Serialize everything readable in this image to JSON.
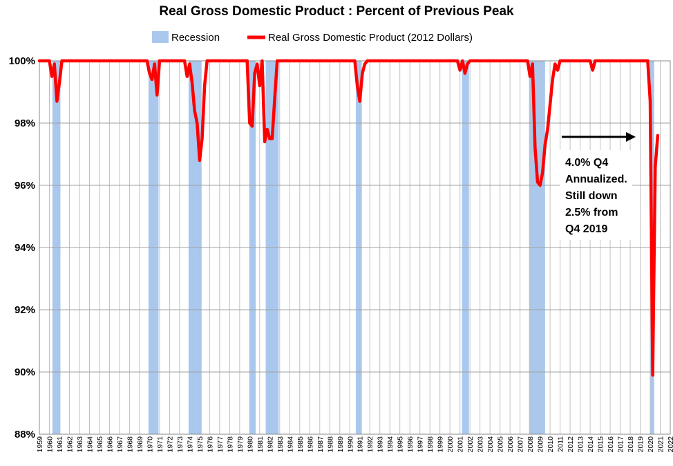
{
  "colors": {
    "recession": "#aac8ee",
    "line": "#ff0000",
    "grid": "#c0c0c0",
    "arrow": "#000000"
  },
  "chart_data": {
    "type": "line",
    "title": "Real Gross Domestic Product : Percent of Previous Peak",
    "xlabel": "",
    "ylabel": "",
    "legend": {
      "placement": "top",
      "entries": [
        "Recession",
        "Real Gross Domestic Product (2012 Dollars)"
      ]
    },
    "ylim": [
      88,
      100
    ],
    "xlim": [
      1959,
      2022
    ],
    "grid": true,
    "y_ticks": [
      {
        "value": 100,
        "label": "100%"
      },
      {
        "value": 98,
        "label": "98%"
      },
      {
        "value": 96,
        "label": "96%"
      },
      {
        "value": 94,
        "label": "94%"
      },
      {
        "value": 92,
        "label": "92%"
      },
      {
        "value": 90,
        "label": "90%"
      },
      {
        "value": 88,
        "label": "88%"
      }
    ],
    "x_ticks": [
      "1959",
      "1960",
      "1961",
      "1962",
      "1963",
      "1964",
      "1965",
      "1966",
      "1967",
      "1968",
      "1969",
      "1970",
      "1971",
      "1972",
      "1973",
      "1974",
      "1975",
      "1976",
      "1977",
      "1978",
      "1979",
      "1980",
      "1981",
      "1982",
      "1983",
      "1984",
      "1985",
      "1986",
      "1987",
      "1988",
      "1989",
      "1990",
      "1991",
      "1992",
      "1993",
      "1994",
      "1995",
      "1996",
      "1997",
      "1998",
      "1999",
      "2000",
      "2001",
      "2002",
      "2003",
      "2004",
      "2005",
      "2006",
      "2007",
      "2008",
      "2009",
      "2010",
      "2011",
      "2012",
      "2013",
      "2014",
      "2015",
      "2016",
      "2017",
      "2018",
      "2019",
      "2020",
      "2021",
      "2022"
    ],
    "recessions": [
      {
        "start": 1960.3,
        "end": 1961.1
      },
      {
        "start": 1969.9,
        "end": 1970.9
      },
      {
        "start": 1973.9,
        "end": 1975.2
      },
      {
        "start": 1980.0,
        "end": 1980.6
      },
      {
        "start": 1981.6,
        "end": 1982.9
      },
      {
        "start": 1990.6,
        "end": 1991.2
      },
      {
        "start": 2001.2,
        "end": 2001.9
      },
      {
        "start": 2007.9,
        "end": 2009.5
      },
      {
        "start": 2020.0,
        "end": 2020.4
      }
    ],
    "series": [
      {
        "name": "Real Gross Domestic Product (2012 Dollars)",
        "x": [
          1959.0,
          1960.0,
          1960.25,
          1960.5,
          1960.75,
          1961.0,
          1961.25,
          1961.5,
          1969.75,
          1970.0,
          1970.25,
          1970.5,
          1970.75,
          1971.0,
          1971.25,
          1973.5,
          1973.75,
          1974.0,
          1974.25,
          1974.5,
          1974.75,
          1975.0,
          1975.25,
          1975.5,
          1975.75,
          1976.0,
          1979.75,
          1980.0,
          1980.25,
          1980.5,
          1980.75,
          1981.0,
          1981.25,
          1981.5,
          1981.75,
          1982.0,
          1982.25,
          1982.5,
          1982.75,
          1983.0,
          1983.25,
          1983.5,
          1990.5,
          1990.75,
          1991.0,
          1991.25,
          1991.5,
          1991.75,
          2000.75,
          2001.0,
          2001.25,
          2001.5,
          2001.75,
          2002.0,
          2007.75,
          2008.0,
          2008.25,
          2008.5,
          2008.75,
          2009.0,
          2009.25,
          2009.5,
          2009.75,
          2010.0,
          2010.25,
          2010.5,
          2010.75,
          2011.0,
          2011.25,
          2011.5,
          2011.75,
          2012.0,
          2014.0,
          2014.25,
          2014.5,
          2019.75,
          2020.0,
          2020.25,
          2020.5,
          2020.75
        ],
        "values": [
          100,
          100,
          99.5,
          99.9,
          98.7,
          99.3,
          100,
          100,
          100,
          99.6,
          99.4,
          99.9,
          98.9,
          100,
          100,
          100,
          99.5,
          99.9,
          99.3,
          98.4,
          98.0,
          96.8,
          97.5,
          99.2,
          100,
          100,
          100,
          98.0,
          97.9,
          99.6,
          99.9,
          99.2,
          100,
          97.4,
          97.8,
          97.5,
          97.5,
          98.8,
          100,
          100,
          100,
          100,
          100,
          99.2,
          98.7,
          99.6,
          99.9,
          100,
          100,
          99.7,
          100,
          99.6,
          99.9,
          100,
          100,
          99.5,
          99.9,
          97.2,
          96.1,
          96.0,
          96.4,
          97.3,
          97.8,
          98.6,
          99.4,
          99.9,
          99.7,
          100,
          100,
          100,
          100,
          100,
          100,
          99.7,
          100,
          100,
          98.7,
          89.9,
          96.6,
          97.6
        ]
      }
    ],
    "annotations": [
      {
        "lines": [
          "4.0% Q4",
          "Annualized.",
          "Still down",
          "2.5% from",
          "Q4 2019"
        ]
      }
    ]
  }
}
